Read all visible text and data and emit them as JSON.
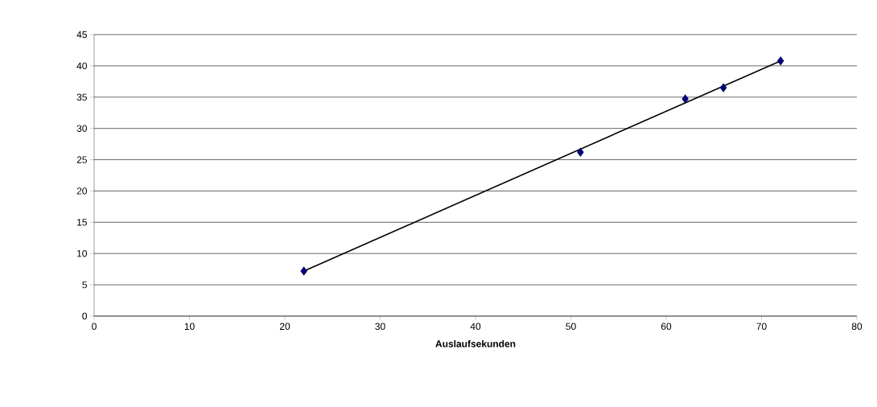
{
  "chart_data": {
    "type": "scatter",
    "xlabel": "Auslaufsekunden",
    "series": [
      {
        "color": "#000080",
        "marker": "diamond",
        "x": [
          22,
          51,
          62,
          66,
          72
        ],
        "values": [
          7.2,
          26.2,
          34.7,
          36.5,
          40.8
        ]
      },
      {
        "type": "line",
        "color": "#000000",
        "marker": "none",
        "line_style": "solid",
        "x": [
          22,
          72
        ],
        "values": [
          7.2,
          40.8
        ]
      }
    ],
    "xlim": [
      0,
      80
    ],
    "xticks": [
      0,
      10,
      20,
      30,
      40,
      50,
      60,
      70,
      80
    ],
    "ylim": [
      0,
      45
    ],
    "yticks": [
      0,
      5,
      10,
      15,
      20,
      25,
      30,
      35,
      40,
      45
    ],
    "grid": "y"
  }
}
